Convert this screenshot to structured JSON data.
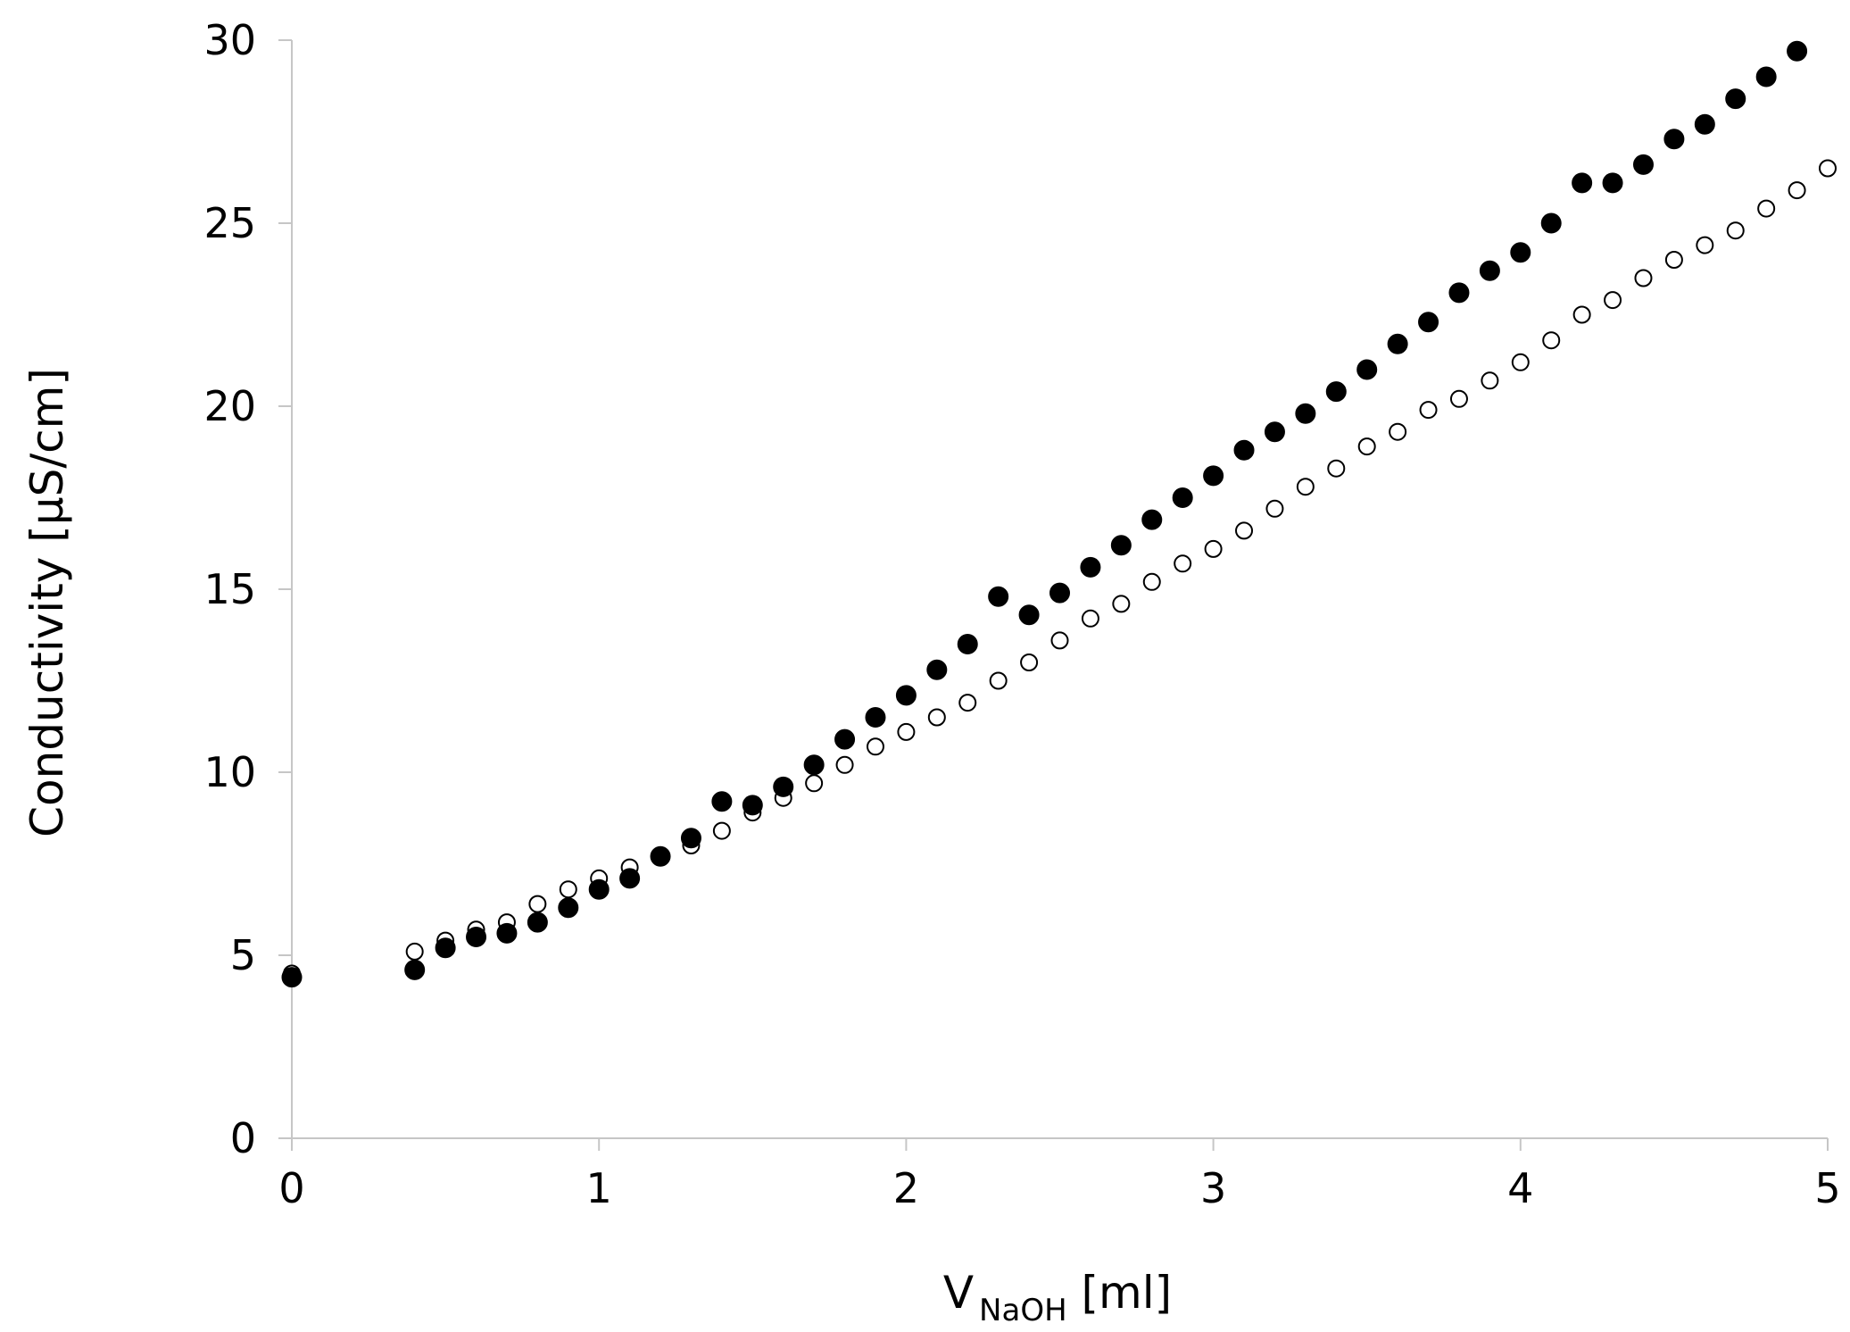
{
  "chart_data": {
    "type": "scatter",
    "xlabel": {
      "main": "V",
      "sub": "NaOH",
      "rest": " [ml]"
    },
    "ylabel": "Conductivity [μS/cm]",
    "xlim": [
      0,
      5
    ],
    "ylim": [
      0,
      30
    ],
    "xticks": [
      0,
      1,
      2,
      3,
      4,
      5
    ],
    "yticks": [
      0,
      5,
      10,
      15,
      20,
      25,
      30
    ],
    "grid": false,
    "legend": "none",
    "series": [
      {
        "marker": "filled-circle",
        "color": "#000000",
        "x": [
          0,
          0.4,
          0.5,
          0.6,
          0.7,
          0.8,
          0.9,
          1.0,
          1.1,
          1.2,
          1.3,
          1.4,
          1.5,
          1.6,
          1.7,
          1.8,
          1.9,
          2.0,
          2.1,
          2.2,
          2.3,
          2.4,
          2.5,
          2.6,
          2.7,
          2.8,
          2.9,
          3.0,
          3.1,
          3.2,
          3.3,
          3.4,
          3.5,
          3.6,
          3.7,
          3.8,
          3.9,
          4.0,
          4.1,
          4.2,
          4.3,
          4.4,
          4.5,
          4.6,
          4.7,
          4.8,
          4.9
        ],
        "y": [
          4.4,
          4.6,
          5.2,
          5.5,
          5.6,
          5.9,
          6.3,
          6.8,
          7.1,
          7.7,
          8.2,
          9.2,
          9.1,
          9.6,
          10.2,
          10.9,
          11.5,
          12.1,
          12.8,
          13.5,
          14.8,
          14.3,
          14.9,
          15.6,
          16.2,
          16.9,
          17.5,
          18.1,
          18.8,
          19.3,
          19.8,
          20.4,
          21.0,
          21.7,
          22.3,
          23.1,
          23.7,
          24.2,
          25.0,
          26.1,
          26.1,
          26.6,
          27.3,
          27.7,
          28.4,
          29.0,
          29.7
        ]
      },
      {
        "marker": "open-circle",
        "color": "#000000",
        "x": [
          0,
          0.4,
          0.5,
          0.6,
          0.7,
          0.8,
          0.9,
          1.0,
          1.1,
          1.2,
          1.3,
          1.4,
          1.5,
          1.6,
          1.7,
          1.8,
          1.9,
          2.0,
          2.1,
          2.2,
          2.3,
          2.4,
          2.5,
          2.6,
          2.7,
          2.8,
          2.9,
          3.0,
          3.1,
          3.2,
          3.3,
          3.4,
          3.5,
          3.6,
          3.7,
          3.8,
          3.9,
          4.0,
          4.1,
          4.2,
          4.3,
          4.4,
          4.5,
          4.6,
          4.7,
          4.8,
          4.9,
          5.0
        ],
        "y": [
          4.5,
          5.1,
          5.4,
          5.7,
          5.9,
          6.4,
          6.8,
          7.1,
          7.4,
          7.7,
          8.0,
          8.4,
          8.9,
          9.3,
          9.7,
          10.2,
          10.7,
          11.1,
          11.5,
          11.9,
          12.5,
          13.0,
          13.6,
          14.2,
          14.6,
          15.2,
          15.7,
          16.1,
          16.6,
          17.2,
          17.8,
          18.3,
          18.9,
          19.3,
          19.9,
          20.2,
          20.7,
          21.2,
          21.8,
          22.5,
          22.9,
          23.5,
          24.0,
          24.4,
          24.8,
          25.4,
          25.9,
          26.5
        ]
      }
    ]
  }
}
